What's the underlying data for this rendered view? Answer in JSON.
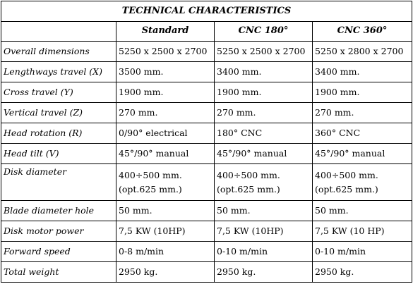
{
  "table": {
    "title": "TECHNICAL CHARACTERISTICS",
    "columns": [
      "",
      "Standard",
      "CNC 180°",
      "CNC 360°"
    ],
    "rows": [
      {
        "label": "Overall dimensions",
        "values": [
          "5250 x 2500 x 2700",
          "5250 x 2500 x 2700",
          "5250 x 2800 x 2700"
        ]
      },
      {
        "label": "Lengthways travel (X)",
        "values": [
          "3500 mm.",
          "3400 mm.",
          "3400 mm."
        ]
      },
      {
        "label": "Cross travel (Y)",
        "values": [
          "1900 mm.",
          "1900 mm.",
          "1900 mm."
        ]
      },
      {
        "label": "Vertical travel (Z)",
        "values": [
          "270 mm.",
          "270 mm.",
          "270 mm."
        ]
      },
      {
        "label": "Head rotation (R)",
        "values": [
          "0/90° electrical",
          "180° CNC",
          "360° CNC"
        ]
      },
      {
        "label": "Head tilt (V)",
        "values": [
          "45°/90° manual",
          "45°/90° manual",
          "45°/90° manual"
        ]
      },
      {
        "label": "Disk diameter",
        "values": [
          [
            "400÷500 mm.",
            "(opt.625 mm.)"
          ],
          [
            "400÷500 mm.",
            "(opt.625 mm.)"
          ],
          [
            "400÷500 mm.",
            "(opt.625 mm.)"
          ]
        ]
      },
      {
        "label": "Blade diameter hole",
        "values": [
          "50 mm.",
          "50 mm.",
          "50 mm."
        ]
      },
      {
        "label": "Disk motor power",
        "values": [
          "7,5 KW (10HP)",
          "7,5 KW (10HP)",
          "7,5 KW (10 HP)"
        ]
      },
      {
        "label": "Forward speed",
        "values": [
          "0-8 m/min",
          "0-10 m/min",
          "0-10 m/min"
        ]
      },
      {
        "label": "Total weight",
        "values": [
          "2950 kg.",
          "2950 kg.",
          "2950 kg."
        ]
      }
    ]
  }
}
